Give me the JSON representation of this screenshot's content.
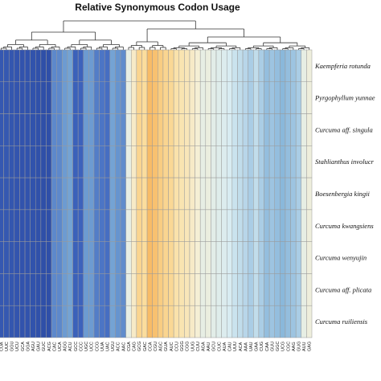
{
  "chart_data": {
    "type": "heatmap",
    "title": "Relative Synonymous Codon Usage",
    "rows": [
      "Kaempferia rotunda",
      "Pyrgophyllum yunnae",
      "Curcuma aff. singula",
      "Stahlianthus involucr",
      "Boesenbergia kingii",
      "Curcuma kwangsiens",
      "Curcuma wenyujin",
      "Curcuma aff. plicata",
      "Curcuma ruiliensis"
    ],
    "columns": [
      "CUA",
      "UUC",
      "GGU",
      "UCU",
      "GCA",
      "GGA",
      "AGU",
      "GAU",
      "GUC",
      "ACG",
      "CAC",
      "UCA",
      "AGG",
      "ACU",
      "GCC",
      "CCC",
      "UGC",
      "UCC",
      "CCG",
      "UUA",
      "UAC",
      "UGU",
      "ACC",
      "AAC",
      "CGA",
      "CAG",
      "GCG",
      "GAC",
      "CCA",
      "CGU",
      "AGC",
      "GUA",
      "AUC",
      "CCU",
      "GGG",
      "CGG",
      "UUG",
      "CUU",
      "AGA",
      "AAU",
      "GCU",
      "CUC",
      "AUA",
      "CAU",
      "UUU",
      "ACA",
      "AAA",
      "UAU",
      "GAA",
      "CUG",
      "CAA",
      "GUU",
      "GGC",
      "UCG",
      "CGC",
      "AAG",
      "GUG",
      "AUU",
      "GAG"
    ],
    "values": [
      [
        0.3,
        0.3,
        0.28,
        0.26,
        0.25,
        0.25,
        0.24,
        0.22,
        0.2,
        0.18,
        0.55,
        0.55,
        0.6,
        0.62,
        0.4,
        0.42,
        0.6,
        0.6,
        0.52,
        0.5,
        0.48,
        0.62,
        0.58,
        0.56,
        0.95,
        1.1,
        1.3,
        1.25,
        1.45,
        1.42,
        1.35,
        1.3,
        1.28,
        1.2,
        1.18,
        1.15,
        1.1,
        1.05,
        0.95,
        0.98,
        0.92,
        0.9,
        0.88,
        0.85,
        0.82,
        0.8,
        0.78,
        0.75,
        0.8,
        0.75,
        0.7,
        0.72,
        0.7,
        0.68,
        0.7,
        0.72,
        0.75,
        0.95,
        1.0
      ],
      [
        0.3,
        0.29,
        0.28,
        0.26,
        0.25,
        0.24,
        0.24,
        0.22,
        0.2,
        0.18,
        0.55,
        0.55,
        0.6,
        0.62,
        0.4,
        0.42,
        0.6,
        0.6,
        0.52,
        0.5,
        0.48,
        0.62,
        0.58,
        0.56,
        0.95,
        1.1,
        1.3,
        1.25,
        1.45,
        1.42,
        1.35,
        1.3,
        1.28,
        1.2,
        1.18,
        1.15,
        1.1,
        1.05,
        0.95,
        0.98,
        0.92,
        0.9,
        0.88,
        0.85,
        0.82,
        0.8,
        0.78,
        0.75,
        0.8,
        0.75,
        0.7,
        0.72,
        0.7,
        0.68,
        0.7,
        0.72,
        0.75,
        0.95,
        1.0
      ],
      [
        0.3,
        0.3,
        0.28,
        0.26,
        0.25,
        0.25,
        0.24,
        0.22,
        0.2,
        0.18,
        0.55,
        0.55,
        0.6,
        0.62,
        0.4,
        0.42,
        0.6,
        0.6,
        0.52,
        0.5,
        0.48,
        0.62,
        0.58,
        0.56,
        0.95,
        1.1,
        1.3,
        1.25,
        1.45,
        1.42,
        1.35,
        1.3,
        1.28,
        1.2,
        1.18,
        1.15,
        1.1,
        1.05,
        0.95,
        0.98,
        0.92,
        0.9,
        0.88,
        0.85,
        0.82,
        0.8,
        0.78,
        0.75,
        0.8,
        0.75,
        0.7,
        0.72,
        0.7,
        0.68,
        0.7,
        0.72,
        0.75,
        0.95,
        1.0
      ],
      [
        0.3,
        0.3,
        0.28,
        0.26,
        0.25,
        0.25,
        0.24,
        0.22,
        0.2,
        0.18,
        0.55,
        0.55,
        0.6,
        0.62,
        0.4,
        0.42,
        0.6,
        0.6,
        0.52,
        0.5,
        0.48,
        0.62,
        0.58,
        0.56,
        0.95,
        1.1,
        1.3,
        1.25,
        1.45,
        1.42,
        1.35,
        1.3,
        1.28,
        1.2,
        1.18,
        1.15,
        1.1,
        1.05,
        0.95,
        0.98,
        0.92,
        0.9,
        0.88,
        0.85,
        0.82,
        0.8,
        0.78,
        0.75,
        0.8,
        0.75,
        0.7,
        0.72,
        0.7,
        0.68,
        0.7,
        0.72,
        0.75,
        0.95,
        1.0
      ],
      [
        0.3,
        0.3,
        0.28,
        0.26,
        0.25,
        0.25,
        0.24,
        0.22,
        0.2,
        0.18,
        0.55,
        0.55,
        0.6,
        0.62,
        0.4,
        0.42,
        0.6,
        0.6,
        0.52,
        0.5,
        0.48,
        0.62,
        0.58,
        0.56,
        0.95,
        1.1,
        1.3,
        1.25,
        1.45,
        1.42,
        1.35,
        1.3,
        1.28,
        1.2,
        1.18,
        1.15,
        1.1,
        1.05,
        0.95,
        0.98,
        0.92,
        0.9,
        0.88,
        0.85,
        0.82,
        0.8,
        0.78,
        0.75,
        0.8,
        0.75,
        0.7,
        0.72,
        0.7,
        0.68,
        0.7,
        0.72,
        0.75,
        0.95,
        1.0
      ],
      [
        0.3,
        0.3,
        0.28,
        0.26,
        0.25,
        0.25,
        0.24,
        0.22,
        0.2,
        0.18,
        0.55,
        0.55,
        0.6,
        0.62,
        0.4,
        0.42,
        0.6,
        0.6,
        0.52,
        0.5,
        0.48,
        0.62,
        0.58,
        0.56,
        0.95,
        1.1,
        1.3,
        1.25,
        1.45,
        1.42,
        1.35,
        1.3,
        1.28,
        1.2,
        1.18,
        1.15,
        1.1,
        1.05,
        0.95,
        0.98,
        0.92,
        0.9,
        0.88,
        0.85,
        0.82,
        0.8,
        0.78,
        0.75,
        0.8,
        0.75,
        0.7,
        0.72,
        0.7,
        0.68,
        0.7,
        0.72,
        0.75,
        0.95,
        1.0
      ],
      [
        0.3,
        0.3,
        0.28,
        0.26,
        0.25,
        0.25,
        0.24,
        0.22,
        0.2,
        0.18,
        0.55,
        0.55,
        0.6,
        0.62,
        0.4,
        0.42,
        0.6,
        0.6,
        0.52,
        0.5,
        0.48,
        0.62,
        0.58,
        0.56,
        0.95,
        1.1,
        1.3,
        1.25,
        1.45,
        1.42,
        1.35,
        1.3,
        1.28,
        1.2,
        1.18,
        1.15,
        1.1,
        1.05,
        0.95,
        0.98,
        0.92,
        0.9,
        0.88,
        0.85,
        0.82,
        0.8,
        0.78,
        0.75,
        0.8,
        0.75,
        0.7,
        0.72,
        0.7,
        0.68,
        0.7,
        0.72,
        0.75,
        0.95,
        1.0
      ],
      [
        0.3,
        0.3,
        0.28,
        0.26,
        0.25,
        0.25,
        0.24,
        0.22,
        0.2,
        0.18,
        0.55,
        0.55,
        0.6,
        0.62,
        0.4,
        0.42,
        0.6,
        0.6,
        0.52,
        0.5,
        0.48,
        0.62,
        0.58,
        0.56,
        0.95,
        1.1,
        1.3,
        1.25,
        1.45,
        1.42,
        1.35,
        1.3,
        1.28,
        1.2,
        1.18,
        1.15,
        1.1,
        1.05,
        0.95,
        0.98,
        0.92,
        0.9,
        0.88,
        0.85,
        0.82,
        0.8,
        0.78,
        0.75,
        0.8,
        0.75,
        0.7,
        0.72,
        0.7,
        0.68,
        0.7,
        0.72,
        0.75,
        0.95,
        1.0
      ],
      [
        0.3,
        0.3,
        0.28,
        0.26,
        0.25,
        0.25,
        0.24,
        0.22,
        0.2,
        0.18,
        0.55,
        0.55,
        0.6,
        0.62,
        0.4,
        0.42,
        0.6,
        0.6,
        0.52,
        0.5,
        0.48,
        0.62,
        0.58,
        0.56,
        0.95,
        1.1,
        1.3,
        1.25,
        1.45,
        1.42,
        1.35,
        1.3,
        1.28,
        1.2,
        1.18,
        1.15,
        1.1,
        1.05,
        0.95,
        0.98,
        0.92,
        0.9,
        0.88,
        0.85,
        0.82,
        0.8,
        0.78,
        0.75,
        0.8,
        0.75,
        0.7,
        0.72,
        0.7,
        0.68,
        0.7,
        0.72,
        0.75,
        0.95,
        1.0
      ]
    ],
    "value_range": [
      0.2,
      1.5
    ],
    "color_scale": [
      [
        0.0,
        "#2f4fa8"
      ],
      [
        0.2,
        "#3f66c0"
      ],
      [
        0.35,
        "#7fb0d8"
      ],
      [
        0.5,
        "#d8ecf2"
      ],
      [
        0.65,
        "#f5efd6"
      ],
      [
        0.8,
        "#fbdfa0"
      ],
      [
        1.0,
        "#f7b45a"
      ]
    ],
    "grid_color": "#9a9a9a",
    "col_dendrogram": true,
    "row_dendrogram": false,
    "legend": "none"
  }
}
